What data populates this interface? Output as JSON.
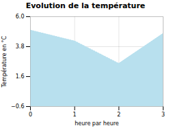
{
  "chart_data": {
    "type": "area",
    "title": "Evolution de la température",
    "xlabel": "heure par heure",
    "ylabel": "Température en °C",
    "x": [
      0,
      1,
      2,
      3
    ],
    "values": [
      5.0,
      4.2,
      2.55,
      4.75
    ],
    "color": "#b8e0ee",
    "line_style": "dotted",
    "xlim": [
      0,
      3
    ],
    "ylim": [
      -0.6,
      6.0
    ],
    "xticks": [
      0,
      1,
      2,
      3
    ],
    "yticks": [
      -0.6,
      1.6,
      3.8,
      {
        "value": 6.0,
        "label": "6.0"
      }
    ],
    "grid": true
  }
}
